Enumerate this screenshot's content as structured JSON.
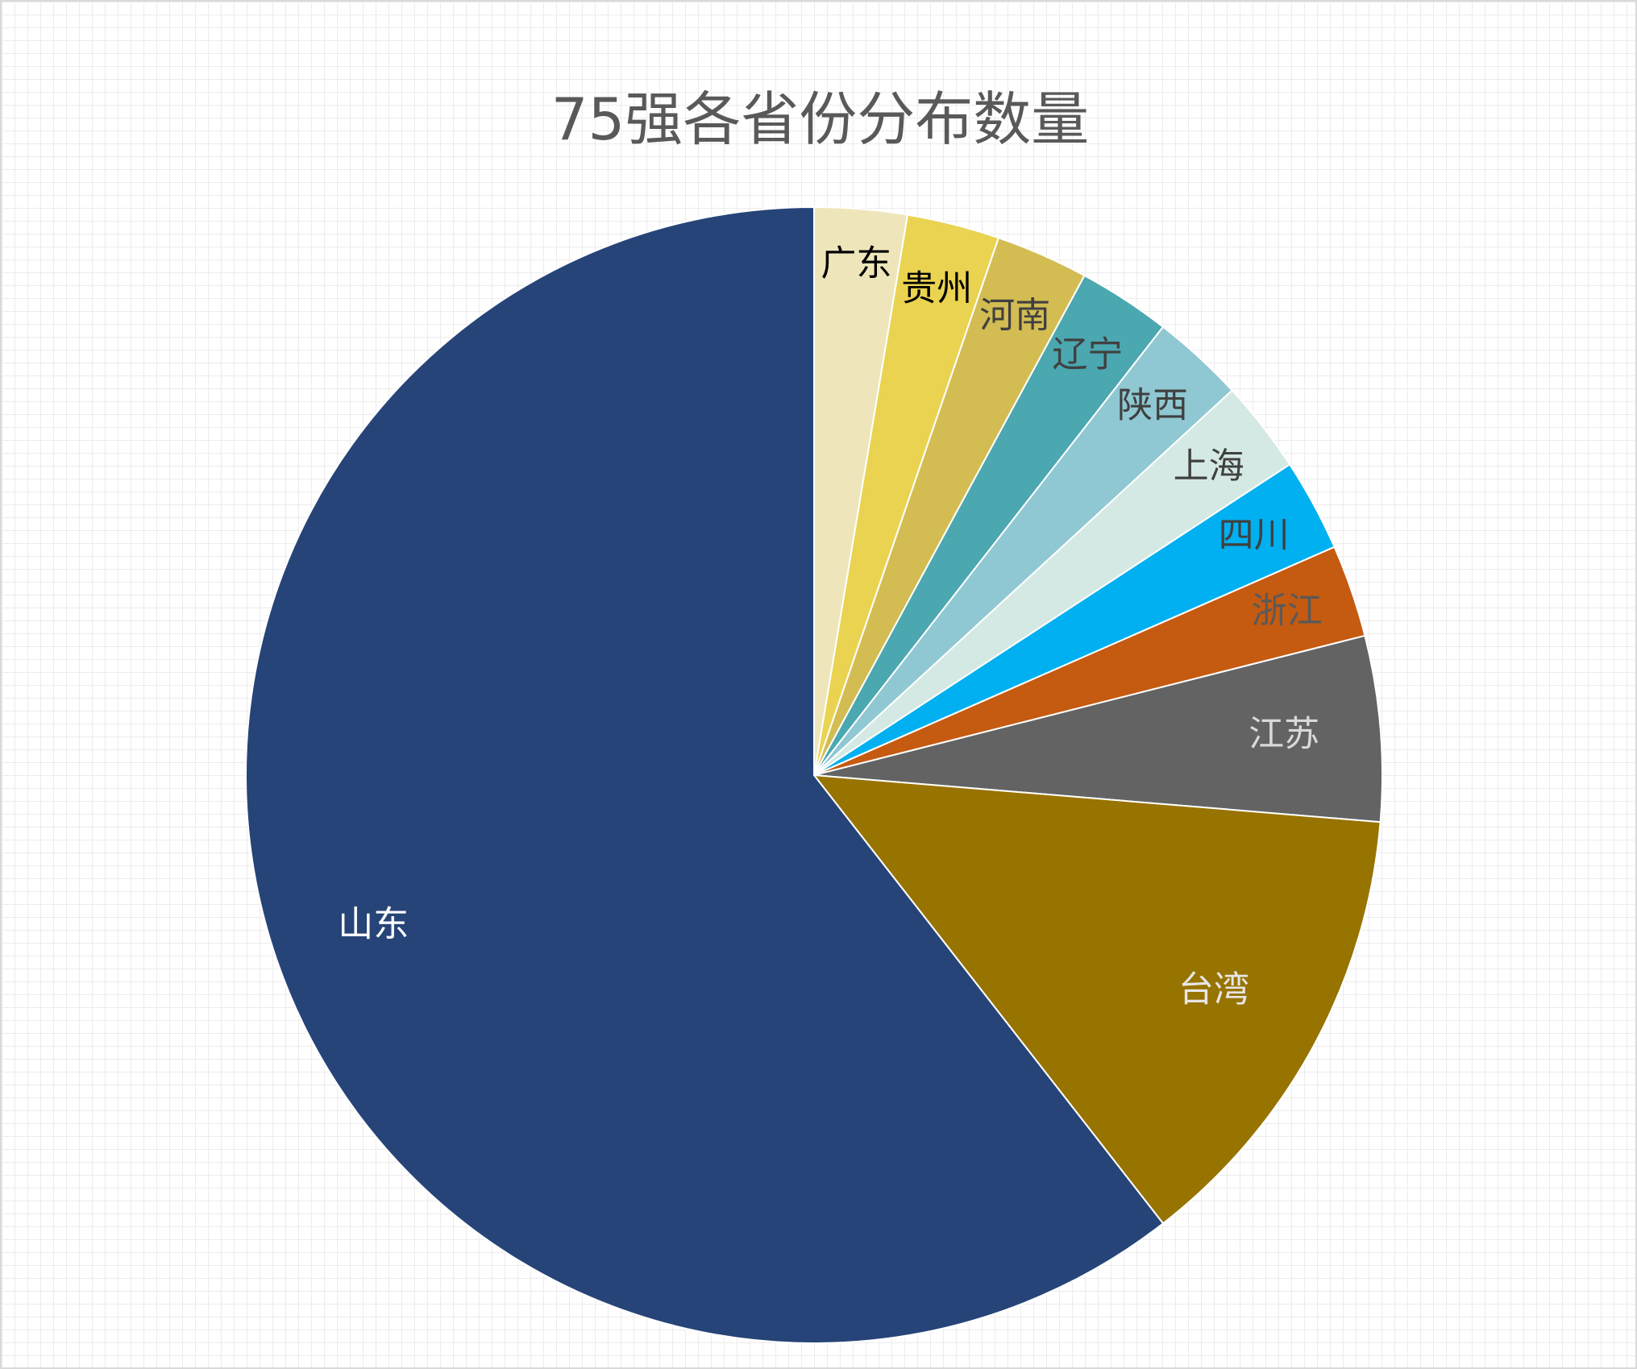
{
  "chart_data": {
    "type": "pie",
    "title": "75强各省份分布数量",
    "slices": [
      {
        "label": "广东",
        "value": 1,
        "color": "#EEE6BA",
        "label_color": "#000000"
      },
      {
        "label": "贵州",
        "value": 1,
        "color": "#EAD351",
        "label_color": "#000000"
      },
      {
        "label": "河南",
        "value": 1,
        "color": "#D3BD53",
        "label_color": "#404040"
      },
      {
        "label": "辽宁",
        "value": 1,
        "color": "#4BA7B0",
        "label_color": "#404040"
      },
      {
        "label": "陕西",
        "value": 1,
        "color": "#8FC8D2",
        "label_color": "#404040"
      },
      {
        "label": "上海",
        "value": 1,
        "color": "#D5E9E4",
        "label_color": "#404040"
      },
      {
        "label": "四川",
        "value": 1,
        "color": "#00B0F0",
        "label_color": "#404040"
      },
      {
        "label": "浙江",
        "value": 1,
        "color": "#C55A11",
        "label_color": "#595959"
      },
      {
        "label": "江苏",
        "value": 2,
        "color": "#636363",
        "label_color": "#D9D9D9"
      },
      {
        "label": "台湾",
        "value": 5,
        "color": "#977300",
        "label_color": "#E7E6E6"
      },
      {
        "label": "山东",
        "value": 23,
        "color": "#264478",
        "label_color": "#FFFFFF"
      }
    ]
  }
}
